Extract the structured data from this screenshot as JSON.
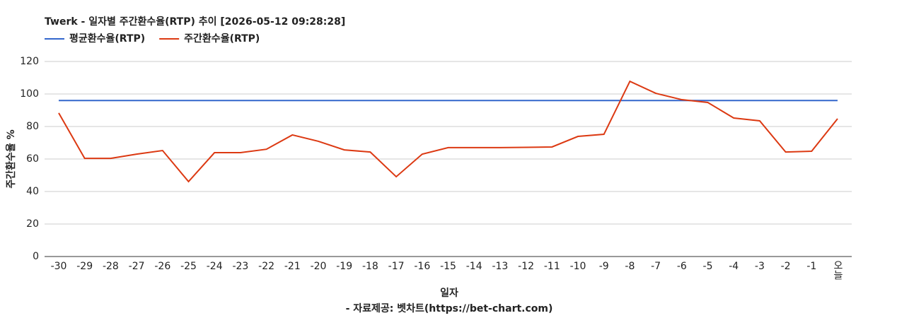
{
  "chart_data": {
    "type": "line",
    "title": "Twerk - 일자별 주간환수율(RTP) 추이 [2026-05-12 09:28:28]",
    "x_label": "일자",
    "y_label": "주간환수율 %",
    "footnote": "- 자료제공: 벳차트(https://bet-chart.com)",
    "categories": [
      "-30",
      "-29",
      "-28",
      "-27",
      "-26",
      "-25",
      "-24",
      "-23",
      "-22",
      "-21",
      "-20",
      "-19",
      "-18",
      "-17",
      "-16",
      "-15",
      "-14",
      "-13",
      "-12",
      "-11",
      "-10",
      "-9",
      "-8",
      "-7",
      "-6",
      "-5",
      "-4",
      "-3",
      "-2",
      "-1",
      "오늘"
    ],
    "series": [
      {
        "name": "평균환수율(RTP)",
        "color": "#3366cc",
        "values": [
          96,
          96,
          96,
          96,
          96,
          96,
          96,
          96,
          96,
          96,
          96,
          96,
          96,
          96,
          96,
          96,
          96,
          96,
          96,
          96,
          96,
          96,
          96,
          96,
          96,
          96,
          96,
          96,
          96,
          96,
          96
        ]
      },
      {
        "name": "주간환수율(RTP)",
        "color": "#dc3912",
        "values": [
          88.3,
          60.4,
          60.4,
          63,
          65.2,
          46.1,
          63.9,
          63.9,
          66,
          74.8,
          70.9,
          65.6,
          64.3,
          49.1,
          63,
          67,
          67,
          67,
          67.2,
          67.4,
          73.9,
          75.2,
          107.8,
          100.4,
          96.5,
          94.8,
          85.2,
          83.5,
          64.3,
          64.8,
          84.8
        ]
      }
    ],
    "ylim": [
      0,
      120
    ],
    "yticks": [
      0,
      20,
      40,
      60,
      80,
      100,
      120
    ],
    "grid": true,
    "legend": "top-left"
  }
}
